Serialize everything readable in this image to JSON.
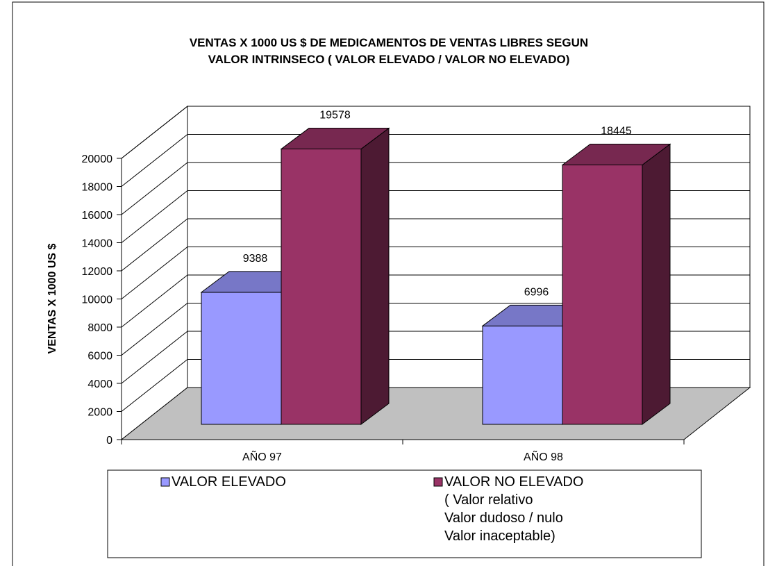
{
  "chart_data": {
    "type": "bar3d",
    "title": "VENTAS  X 1000 US $ DE MEDICAMENTOS DE VENTAS LIBRES SEGUN\nVALOR INTRINSECO ( VALOR ELEVADO / VALOR NO ELEVADO)",
    "y_label": "VENTAS X  1000 US $",
    "categories": [
      "AÑO 97",
      "AÑO 98"
    ],
    "series": [
      {
        "name": "VALOR ELEVADO",
        "color": "#9999ff",
        "values": [
          9388,
          6996
        ]
      },
      {
        "name": "VALOR  NO ELEVADO\n( Valor relativo\nValor dudoso / nulo\nValor inaceptable)",
        "color": "#993366",
        "values": [
          19578,
          18445
        ]
      }
    ],
    "ylim": [
      0,
      20000
    ],
    "yticks": [
      0,
      2000,
      4000,
      6000,
      8000,
      10000,
      12000,
      14000,
      16000,
      18000,
      20000
    ],
    "grid": true
  }
}
